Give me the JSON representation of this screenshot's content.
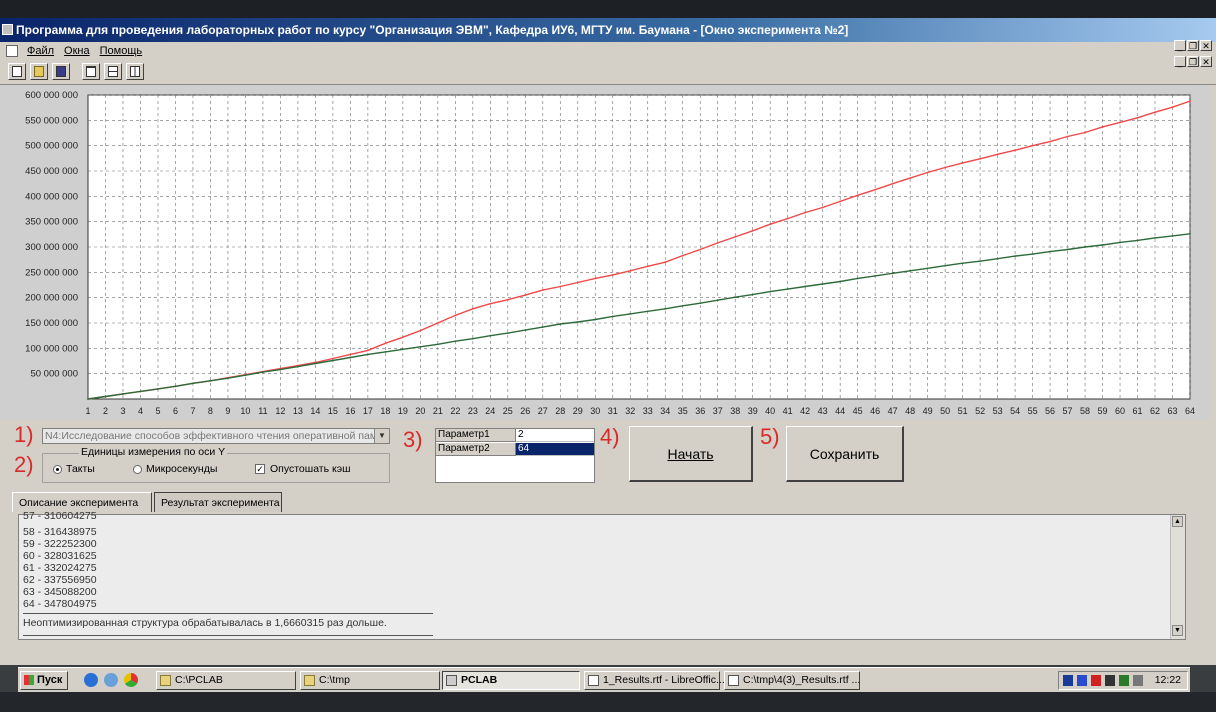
{
  "window": {
    "title": "Программа для проведения лабораторных работ по курсу \"Организация ЭВМ\", Кафедра ИУ6, МГТУ им. Баумана - [Окно эксперимента №2]"
  },
  "menu": {
    "items": [
      "Файл",
      "Окна",
      "Помощь"
    ]
  },
  "toolbar": {
    "icons": [
      "new-file-icon",
      "open-folder-icon",
      "save-icon",
      "cascade-windows-icon",
      "tile-horizontal-icon",
      "tile-vertical-icon"
    ]
  },
  "annotations": {
    "n1": "1)",
    "n2": "2)",
    "n3": "3)",
    "n4": "4)",
    "n5": "5)"
  },
  "experiment_select": {
    "value": "N4:Исследование способов эффективного  чтения оперативной памя"
  },
  "units_group": {
    "legend": "Единицы измерения по оси Y",
    "radio_ticks": "Такты",
    "radio_micro": "Микросекунды",
    "checkbox_flush": "Опустошать кэш",
    "selected": "Такты",
    "flush_checked": true
  },
  "params": {
    "rows": [
      {
        "name": "Параметр1",
        "value": "2",
        "selected": false
      },
      {
        "name": "Параметр2",
        "value": "64",
        "selected": true
      }
    ]
  },
  "buttons": {
    "start": "Начать",
    "save": "Сохранить"
  },
  "tabs": {
    "description": "Описание эксперимента",
    "result": "Результат эксперимента"
  },
  "output": {
    "lines": [
      "57 - 310604275",
      "58 - 316438975",
      "59 - 322252300",
      "60 - 328031625",
      "61 - 332024275",
      "62 - 337556950",
      "63 - 345088200",
      "64 - 347804975"
    ],
    "conclusion": "Неоптимизированная структура обрабатывалась в 1,6660315 раз дольше."
  },
  "taskbar": {
    "start": "Пуск",
    "items": [
      "C:\\PCLAB",
      "C:\\tmp",
      "PCLAB",
      "1_Results.rtf - LibreOffic...",
      "C:\\tmp\\4(3)_Results.rtf ..."
    ],
    "active_index": 2,
    "clock": "12:22"
  },
  "colors": {
    "series_red": "#f04848",
    "series_green": "#2e6b3a",
    "grid": "#6f6f6f"
  },
  "chart_data": {
    "type": "line",
    "x": [
      1,
      2,
      3,
      4,
      5,
      6,
      7,
      8,
      9,
      10,
      11,
      12,
      13,
      14,
      15,
      16,
      17,
      18,
      19,
      20,
      21,
      22,
      23,
      24,
      25,
      26,
      27,
      28,
      29,
      30,
      31,
      32,
      33,
      34,
      35,
      36,
      37,
      38,
      39,
      40,
      41,
      42,
      43,
      44,
      45,
      46,
      47,
      48,
      49,
      50,
      51,
      52,
      53,
      54,
      55,
      56,
      57,
      58,
      59,
      60,
      61,
      62,
      63,
      64
    ],
    "ylim": [
      0,
      600000000
    ],
    "yticks": [
      50000000,
      100000000,
      150000000,
      200000000,
      250000000,
      300000000,
      350000000,
      400000000,
      450000000,
      500000000,
      550000000,
      600000000
    ],
    "ytick_labels": [
      "50 000 000",
      "100 000 000",
      "150 000 000",
      "200 000 000",
      "250 000 000",
      "300 000 000",
      "350 000 000",
      "400 000 000",
      "450 000 000",
      "500 000 000",
      "550 000 000",
      "600 000 000"
    ],
    "grid": true,
    "series": [
      {
        "color": "#f04848",
        "values": [
          0,
          5000000,
          10000000,
          15000000,
          20000000,
          25000000,
          31000000,
          36000000,
          42000000,
          48000000,
          54000000,
          60000000,
          66000000,
          72000000,
          80000000,
          88000000,
          96000000,
          110000000,
          122000000,
          135000000,
          150000000,
          165000000,
          178000000,
          188000000,
          196000000,
          205000000,
          215000000,
          222000000,
          230000000,
          238000000,
          245000000,
          253000000,
          262000000,
          270000000,
          283000000,
          295000000,
          308000000,
          320000000,
          332000000,
          345000000,
          356000000,
          368000000,
          378000000,
          390000000,
          402000000,
          413000000,
          425000000,
          436000000,
          447000000,
          457000000,
          466000000,
          474000000,
          483000000,
          491000000,
          500000000,
          508000000,
          518000000,
          526000000,
          537000000,
          546000000,
          555000000,
          566000000,
          576000000,
          588000000
        ]
      },
      {
        "color": "#2e6b3a",
        "values": [
          0,
          5000000,
          10000000,
          15000000,
          20000000,
          25000000,
          31000000,
          36000000,
          41000000,
          47000000,
          53000000,
          58000000,
          64000000,
          70000000,
          76000000,
          82000000,
          88000000,
          93000000,
          98000000,
          103000000,
          108000000,
          114000000,
          119000000,
          125000000,
          130000000,
          136000000,
          142000000,
          148000000,
          152000000,
          157000000,
          163000000,
          168000000,
          173000000,
          178000000,
          184000000,
          189000000,
          195000000,
          201000000,
          206000000,
          212000000,
          217000000,
          222000000,
          227000000,
          232000000,
          238000000,
          243000000,
          248000000,
          253000000,
          258000000,
          263000000,
          268000000,
          272000000,
          277000000,
          282000000,
          286000000,
          291000000,
          295000000,
          300000000,
          304000000,
          309000000,
          313000000,
          318000000,
          322000000,
          326000000
        ]
      }
    ]
  }
}
